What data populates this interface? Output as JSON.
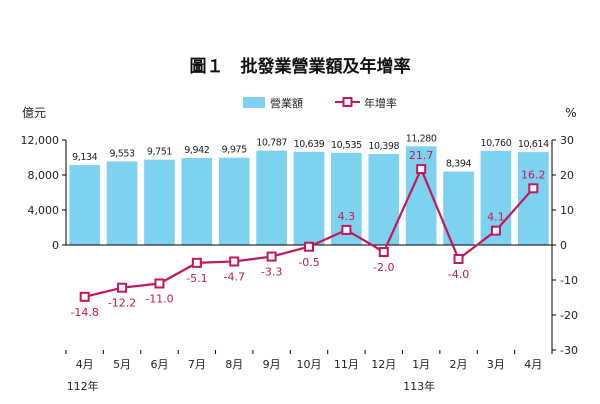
{
  "chart_data": {
    "type": "bar",
    "title": "圖１　批發業營業額及年增率",
    "left_axis_unit": "億元",
    "right_axis_unit": "%",
    "categories": [
      "4月",
      "5月",
      "6月",
      "7月",
      "8月",
      "9月",
      "10月",
      "11月",
      "12月",
      "1月",
      "2月",
      "3月",
      "4月"
    ],
    "year_labels": [
      {
        "category_index": 0,
        "label": "112年"
      },
      {
        "category_index": 9,
        "label": "113年"
      }
    ],
    "left_ylim": [
      0,
      12000
    ],
    "left_ticks": [
      0,
      4000,
      8000,
      12000
    ],
    "left_tick_labels": [
      "0",
      "4,000",
      "8,000",
      "12,000"
    ],
    "right_ylim": [
      -30,
      30
    ],
    "right_ticks": [
      -30,
      -20,
      -10,
      0,
      10,
      20,
      30
    ],
    "right_tick_labels": [
      "-30",
      "-20",
      "-10",
      "0",
      "10",
      "20",
      "30"
    ],
    "legend_placement": "top-center",
    "grid": false,
    "series": [
      {
        "name": "營業額",
        "type": "bar",
        "axis": "left",
        "color": "#7dd3ef",
        "values": [
          9134,
          9553,
          9751,
          9942,
          9975,
          10787,
          10639,
          10535,
          10398,
          11280,
          8394,
          10760,
          10614
        ],
        "labels": [
          "9,134",
          "9,553",
          "9,751",
          "9,942",
          "9,975",
          "10,787",
          "10,639",
          "10,535",
          "10,398",
          "11,280",
          "8,394",
          "10,760",
          "10,614"
        ]
      },
      {
        "name": "年增率",
        "type": "line",
        "axis": "right",
        "color": "#c2185b",
        "values": [
          -14.8,
          -12.2,
          -11.0,
          -5.1,
          -4.7,
          -3.3,
          -0.5,
          4.3,
          -2.0,
          21.7,
          -4.0,
          4.1,
          16.2
        ],
        "labels": [
          "-14.8",
          "-12.2",
          "-11.0",
          "-5.1",
          "-4.7",
          "-3.3",
          "-0.5",
          "4.3",
          "-2.0",
          "21.7",
          "-4.0",
          "4.1",
          "16.2"
        ]
      }
    ]
  }
}
